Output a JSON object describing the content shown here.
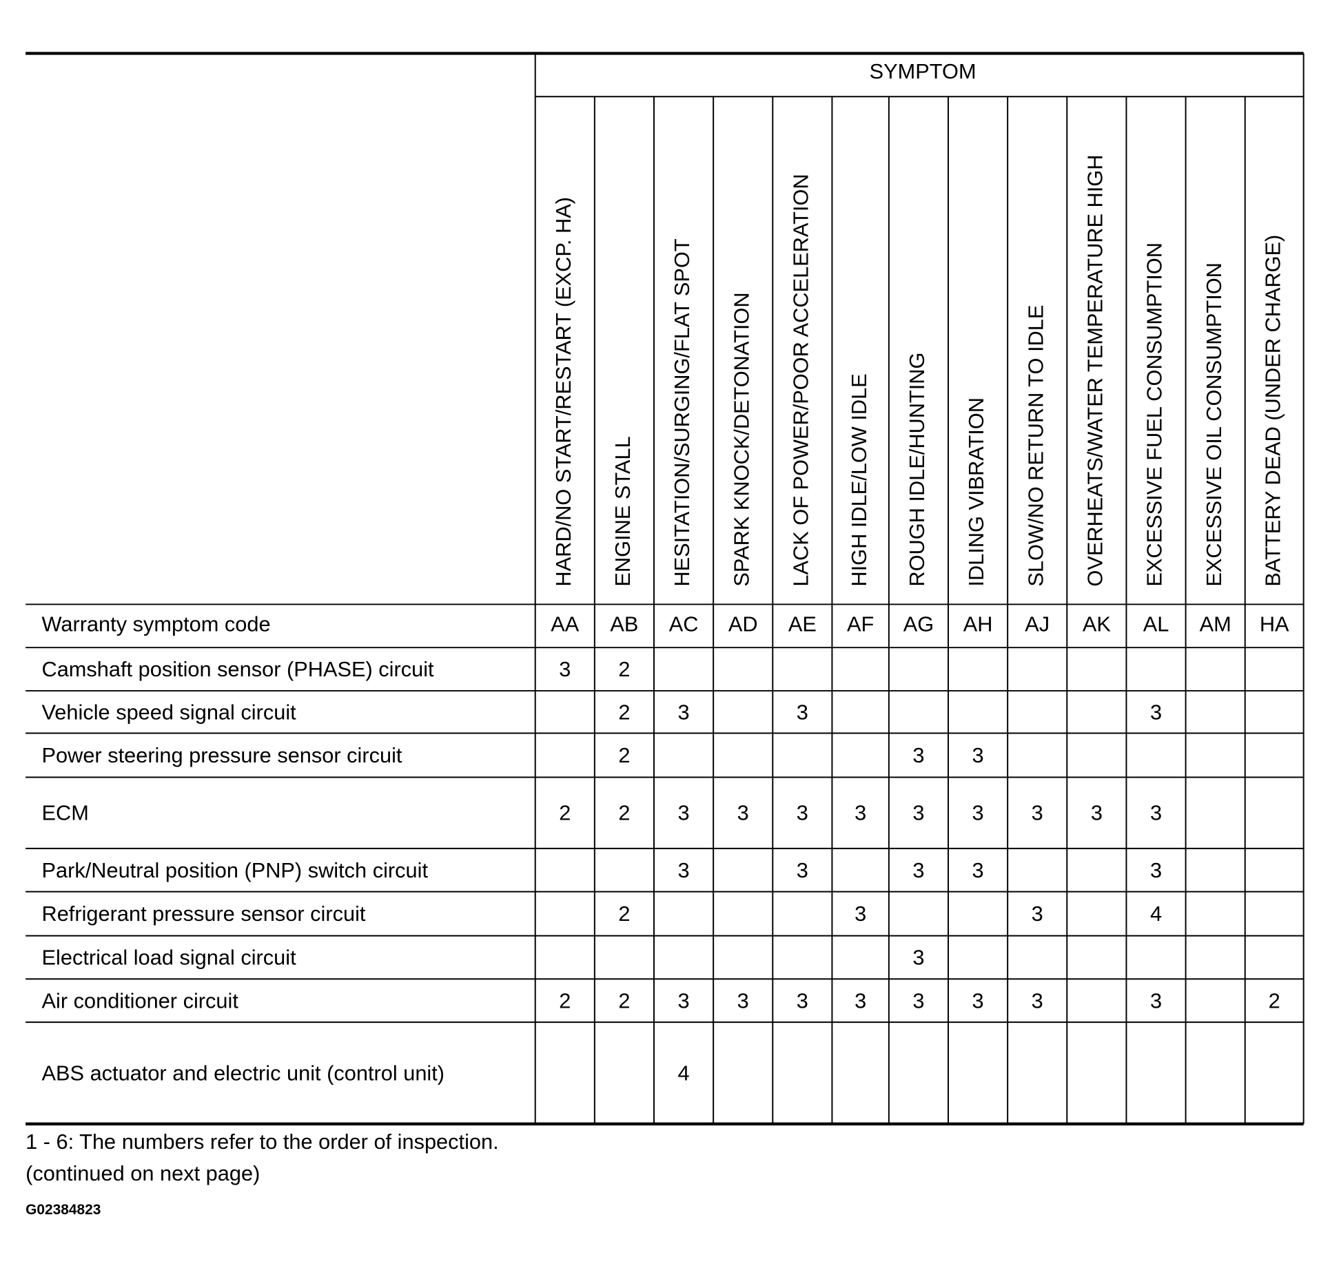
{
  "table": {
    "symptom_header": "SYMPTOM",
    "columns": [
      "HARD/NO START/RESTART (EXCP. HA)",
      "ENGINE STALL",
      "HESITATION/SURGING/FLAT SPOT",
      "SPARK KNOCK/DETONATION",
      "LACK OF POWER/POOR ACCELERATION",
      "HIGH IDLE/LOW IDLE",
      "ROUGH IDLE/HUNTING",
      "IDLING VIBRATION",
      "SLOW/NO RETURN TO IDLE",
      "OVERHEATS/WATER TEMPERATURE HIGH",
      "EXCESSIVE FUEL CONSUMPTION",
      "EXCESSIVE OIL CONSUMPTION",
      "BATTERY DEAD (UNDER CHARGE)"
    ],
    "code_row_label": "Warranty symptom code",
    "codes": [
      "AA",
      "AB",
      "AC",
      "AD",
      "AE",
      "AF",
      "AG",
      "AH",
      "AJ",
      "AK",
      "AL",
      "AM",
      "HA"
    ],
    "rows": [
      {
        "label": "Camshaft position sensor (PHASE) circuit",
        "cells": [
          3,
          2,
          null,
          null,
          null,
          null,
          null,
          null,
          null,
          null,
          null,
          null,
          null
        ]
      },
      {
        "label": "Vehicle speed signal circuit",
        "cells": [
          null,
          2,
          3,
          null,
          3,
          null,
          null,
          null,
          null,
          null,
          3,
          null,
          null
        ]
      },
      {
        "label": "Power steering pressure sensor circuit",
        "cells": [
          null,
          2,
          null,
          null,
          null,
          null,
          3,
          3,
          null,
          null,
          null,
          null,
          null
        ]
      },
      {
        "label": "ECM",
        "cells": [
          2,
          2,
          3,
          3,
          3,
          3,
          3,
          3,
          3,
          3,
          3,
          null,
          null
        ]
      },
      {
        "label": "Park/Neutral position (PNP) switch circuit",
        "cells": [
          null,
          null,
          3,
          null,
          3,
          null,
          3,
          3,
          null,
          null,
          3,
          null,
          null
        ]
      },
      {
        "label": "Refrigerant pressure sensor circuit",
        "cells": [
          null,
          2,
          null,
          null,
          null,
          3,
          null,
          null,
          3,
          null,
          4,
          null,
          null
        ]
      },
      {
        "label": "Electrical load signal circuit",
        "cells": [
          null,
          null,
          null,
          null,
          null,
          null,
          3,
          null,
          null,
          null,
          null,
          null,
          null
        ]
      },
      {
        "label": "Air conditioner circuit",
        "cells": [
          2,
          2,
          3,
          3,
          3,
          3,
          3,
          3,
          3,
          null,
          3,
          null,
          2
        ]
      },
      {
        "label": "ABS actuator and electric unit (control unit)",
        "cells": [
          null,
          null,
          4,
          null,
          null,
          null,
          null,
          null,
          null,
          null,
          null,
          null,
          null
        ]
      }
    ]
  },
  "footer": {
    "note": "1 - 6: The numbers refer to the order of inspection.",
    "continued": "(continued on next page)",
    "figure_id": "G02384823"
  }
}
